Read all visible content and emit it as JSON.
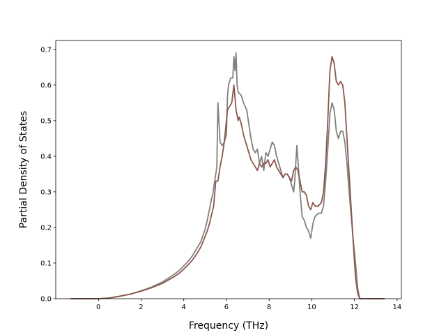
{
  "chart_data": {
    "type": "line",
    "title": "",
    "xlabel": "Frequency (THz)",
    "ylabel": "Partial Density of States",
    "xlim": [
      -2.0,
      14.2
    ],
    "ylim": [
      0.0,
      0.725
    ],
    "xticks": [
      0,
      2,
      4,
      6,
      8,
      10,
      12,
      14
    ],
    "yticks": [
      0.0,
      0.1,
      0.2,
      0.3,
      0.4,
      0.5,
      0.6,
      0.7
    ],
    "xtick_labels": [
      "0",
      "2",
      "4",
      "6",
      "8",
      "10",
      "12",
      "14"
    ],
    "ytick_labels": [
      "0.0",
      "0.1",
      "0.2",
      "0.3",
      "0.4",
      "0.5",
      "0.6",
      "0.7"
    ],
    "grid": false,
    "legend": "none",
    "series": [
      {
        "color": "#808080",
        "points": [
          [
            -1.3,
            0.0
          ],
          [
            0.0,
            0.0
          ],
          [
            0.5,
            0.002
          ],
          [
            1.0,
            0.007
          ],
          [
            1.5,
            0.013
          ],
          [
            2.0,
            0.022
          ],
          [
            2.5,
            0.033
          ],
          [
            3.0,
            0.047
          ],
          [
            3.5,
            0.066
          ],
          [
            3.8,
            0.08
          ],
          [
            4.0,
            0.092
          ],
          [
            4.2,
            0.105
          ],
          [
            4.4,
            0.12
          ],
          [
            4.6,
            0.14
          ],
          [
            4.8,
            0.16
          ],
          [
            5.0,
            0.195
          ],
          [
            5.1,
            0.22
          ],
          [
            5.2,
            0.25
          ],
          [
            5.3,
            0.28
          ],
          [
            5.35,
            0.29
          ],
          [
            5.45,
            0.33
          ],
          [
            5.5,
            0.35
          ],
          [
            5.55,
            0.37
          ],
          [
            5.6,
            0.55
          ],
          [
            5.7,
            0.44
          ],
          [
            5.8,
            0.43
          ],
          [
            5.9,
            0.44
          ],
          [
            6.0,
            0.46
          ],
          [
            6.05,
            0.57
          ],
          [
            6.1,
            0.6
          ],
          [
            6.2,
            0.62
          ],
          [
            6.3,
            0.62
          ],
          [
            6.35,
            0.68
          ],
          [
            6.4,
            0.64
          ],
          [
            6.45,
            0.69
          ],
          [
            6.5,
            0.6
          ],
          [
            6.55,
            0.58
          ],
          [
            6.7,
            0.57
          ],
          [
            6.8,
            0.55
          ],
          [
            6.95,
            0.53
          ],
          [
            7.05,
            0.49
          ],
          [
            7.15,
            0.45
          ],
          [
            7.25,
            0.42
          ],
          [
            7.35,
            0.41
          ],
          [
            7.45,
            0.42
          ],
          [
            7.55,
            0.38
          ],
          [
            7.65,
            0.4
          ],
          [
            7.75,
            0.36
          ],
          [
            7.85,
            0.41
          ],
          [
            7.95,
            0.4
          ],
          [
            8.05,
            0.42
          ],
          [
            8.15,
            0.44
          ],
          [
            8.25,
            0.43
          ],
          [
            8.35,
            0.4
          ],
          [
            8.45,
            0.38
          ],
          [
            8.55,
            0.36
          ],
          [
            8.65,
            0.34
          ],
          [
            8.75,
            0.35
          ],
          [
            8.85,
            0.35
          ],
          [
            8.95,
            0.34
          ],
          [
            9.05,
            0.32
          ],
          [
            9.15,
            0.3
          ],
          [
            9.2,
            0.33
          ],
          [
            9.3,
            0.43
          ],
          [
            9.35,
            0.39
          ],
          [
            9.45,
            0.3
          ],
          [
            9.55,
            0.23
          ],
          [
            9.65,
            0.22
          ],
          [
            9.75,
            0.2
          ],
          [
            9.85,
            0.19
          ],
          [
            9.95,
            0.17
          ],
          [
            10.05,
            0.21
          ],
          [
            10.15,
            0.23
          ],
          [
            10.3,
            0.24
          ],
          [
            10.45,
            0.24
          ],
          [
            10.55,
            0.26
          ],
          [
            10.65,
            0.33
          ],
          [
            10.75,
            0.42
          ],
          [
            10.85,
            0.52
          ],
          [
            10.95,
            0.55
          ],
          [
            11.05,
            0.53
          ],
          [
            11.15,
            0.47
          ],
          [
            11.25,
            0.45
          ],
          [
            11.35,
            0.47
          ],
          [
            11.45,
            0.47
          ],
          [
            11.55,
            0.44
          ],
          [
            11.65,
            0.38
          ],
          [
            11.75,
            0.3
          ],
          [
            11.85,
            0.23
          ],
          [
            11.95,
            0.16
          ],
          [
            12.05,
            0.1
          ],
          [
            12.15,
            0.03
          ],
          [
            12.25,
            0.0
          ],
          [
            13.4,
            0.0
          ]
        ]
      },
      {
        "color": "#8c564b",
        "points": [
          [
            -1.3,
            0.0
          ],
          [
            0.0,
            0.0
          ],
          [
            0.5,
            0.002
          ],
          [
            1.0,
            0.007
          ],
          [
            1.5,
            0.013
          ],
          [
            2.0,
            0.021
          ],
          [
            2.5,
            0.031
          ],
          [
            3.0,
            0.043
          ],
          [
            3.5,
            0.06
          ],
          [
            3.8,
            0.072
          ],
          [
            4.0,
            0.083
          ],
          [
            4.2,
            0.095
          ],
          [
            4.4,
            0.108
          ],
          [
            4.6,
            0.125
          ],
          [
            4.8,
            0.145
          ],
          [
            5.0,
            0.175
          ],
          [
            5.1,
            0.19
          ],
          [
            5.2,
            0.21
          ],
          [
            5.3,
            0.235
          ],
          [
            5.4,
            0.26
          ],
          [
            5.5,
            0.33
          ],
          [
            5.6,
            0.33
          ],
          [
            5.7,
            0.37
          ],
          [
            5.8,
            0.4
          ],
          [
            5.9,
            0.44
          ],
          [
            6.0,
            0.5
          ],
          [
            6.05,
            0.53
          ],
          [
            6.15,
            0.54
          ],
          [
            6.25,
            0.55
          ],
          [
            6.35,
            0.6
          ],
          [
            6.45,
            0.53
          ],
          [
            6.55,
            0.5
          ],
          [
            6.6,
            0.51
          ],
          [
            6.7,
            0.49
          ],
          [
            6.8,
            0.46
          ],
          [
            6.95,
            0.43
          ],
          [
            7.05,
            0.41
          ],
          [
            7.15,
            0.39
          ],
          [
            7.25,
            0.38
          ],
          [
            7.35,
            0.37
          ],
          [
            7.45,
            0.36
          ],
          [
            7.55,
            0.38
          ],
          [
            7.65,
            0.37
          ],
          [
            7.75,
            0.38
          ],
          [
            7.85,
            0.38
          ],
          [
            7.95,
            0.39
          ],
          [
            8.05,
            0.37
          ],
          [
            8.15,
            0.38
          ],
          [
            8.25,
            0.39
          ],
          [
            8.35,
            0.37
          ],
          [
            8.45,
            0.36
          ],
          [
            8.55,
            0.35
          ],
          [
            8.65,
            0.34
          ],
          [
            8.75,
            0.35
          ],
          [
            8.85,
            0.35
          ],
          [
            8.95,
            0.34
          ],
          [
            9.05,
            0.33
          ],
          [
            9.15,
            0.36
          ],
          [
            9.25,
            0.37
          ],
          [
            9.35,
            0.36
          ],
          [
            9.45,
            0.33
          ],
          [
            9.55,
            0.3
          ],
          [
            9.65,
            0.3
          ],
          [
            9.75,
            0.29
          ],
          [
            9.85,
            0.26
          ],
          [
            9.95,
            0.25
          ],
          [
            10.05,
            0.27
          ],
          [
            10.15,
            0.26
          ],
          [
            10.3,
            0.26
          ],
          [
            10.45,
            0.27
          ],
          [
            10.55,
            0.3
          ],
          [
            10.65,
            0.38
          ],
          [
            10.75,
            0.5
          ],
          [
            10.85,
            0.64
          ],
          [
            10.95,
            0.68
          ],
          [
            11.05,
            0.66
          ],
          [
            11.15,
            0.61
          ],
          [
            11.25,
            0.6
          ],
          [
            11.35,
            0.61
          ],
          [
            11.45,
            0.6
          ],
          [
            11.55,
            0.55
          ],
          [
            11.65,
            0.45
          ],
          [
            11.75,
            0.35
          ],
          [
            11.85,
            0.25
          ],
          [
            11.95,
            0.15
          ],
          [
            12.05,
            0.06
          ],
          [
            12.15,
            0.015
          ],
          [
            12.25,
            0.0
          ],
          [
            13.4,
            0.0
          ]
        ]
      }
    ]
  }
}
